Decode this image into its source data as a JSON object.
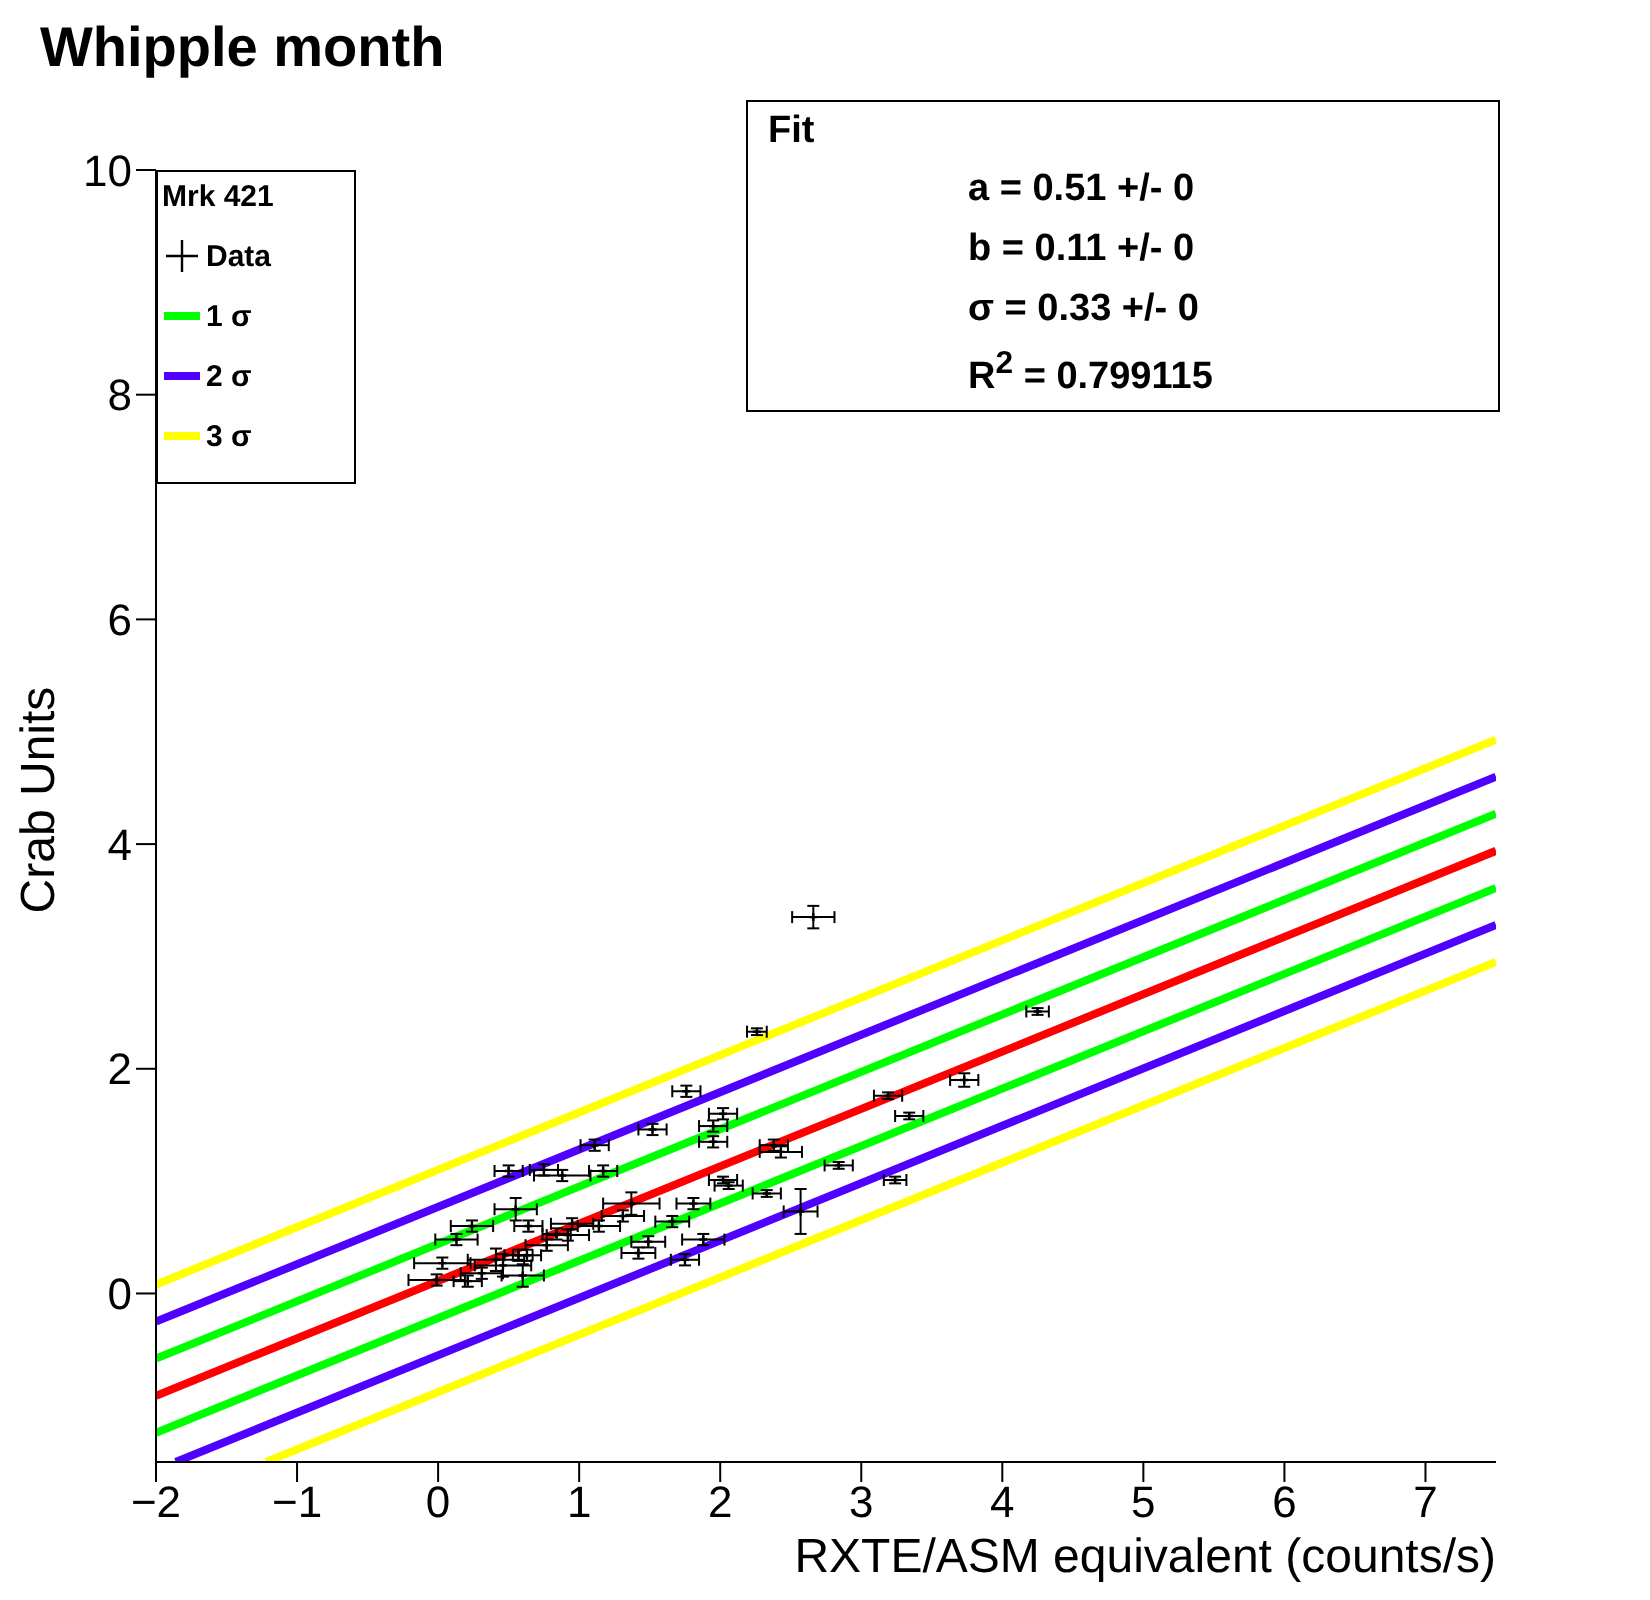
{
  "chart_data": {
    "type": "scatter",
    "title": "Whipple month",
    "xlabel": "RXTE/ASM equivalent (counts/s)",
    "ylabel": "Crab Units",
    "legend_title": "Mrk 421",
    "legend": "top left",
    "xlim": [
      -2,
      7.5
    ],
    "xticks": [
      -2,
      -1,
      0,
      1,
      2,
      3,
      4,
      5,
      6,
      7
    ],
    "ylim": [
      -1.5,
      10
    ],
    "yticks": [
      0,
      2,
      4,
      6,
      8,
      10
    ],
    "annotations": [
      "Fit",
      "a = 0.51 +/- 0",
      "b = 0.11 +/- 0",
      "σ = 0.33 +/- 0",
      "R$^{2}$ = 0.799115"
    ],
    "series": [
      {
        "name": "Data",
        "marker": "cross",
        "color": "#000000",
        "x": [
          2.66,
          2.26,
          4.25,
          3.73,
          3.19,
          3.34,
          2.84,
          3.24,
          1.76,
          1.52,
          2.02,
          1.95,
          1.95,
          2.38,
          2.43,
          2.02,
          2.06,
          2.33,
          2.57,
          1.81,
          1.66,
          1.88,
          1.49,
          1.42,
          1.75,
          1.11,
          1.17,
          0.88,
          0.5,
          0.75,
          1.14,
          1.37,
          1.31,
          0.55,
          0.63,
          0.64,
          0.84,
          0.13,
          0.24,
          -0.01,
          0.41,
          0.31,
          0.6,
          0.03,
          0.77,
          0.46,
          0.21,
          0.92,
          0.95,
          0.57
        ],
        "values": [
          3.35,
          2.33,
          2.51,
          1.9,
          1.76,
          1.58,
          1.14,
          1.01,
          1.8,
          1.46,
          1.6,
          1.49,
          1.35,
          1.32,
          1.26,
          1.01,
          0.96,
          0.89,
          0.73,
          0.8,
          0.64,
          0.48,
          0.46,
          0.36,
          0.3,
          1.32,
          1.09,
          1.05,
          1.09,
          1.1,
          0.6,
          0.8,
          0.69,
          0.75,
          0.34,
          0.6,
          0.53,
          0.48,
          0.6,
          0.12,
          0.3,
          0.18,
          0.16,
          0.27,
          0.43,
          0.25,
          0.11,
          0.52,
          0.62,
          0.34
        ],
        "errors": [
          0.1,
          0.03,
          0.03,
          0.06,
          0.03,
          0.03,
          0.03,
          0.03,
          0.05,
          0.05,
          0.05,
          0.05,
          0.05,
          0.05,
          0.05,
          0.03,
          0.03,
          0.03,
          0.2,
          0.05,
          0.05,
          0.05,
          0.05,
          0.05,
          0.05,
          0.05,
          0.05,
          0.05,
          0.05,
          0.05,
          0.05,
          0.1,
          0.05,
          0.1,
          0.05,
          0.05,
          0.05,
          0.05,
          0.05,
          0.05,
          0.1,
          0.05,
          0.1,
          0.05,
          0.05,
          0.1,
          0.05,
          0.05,
          0.05,
          0.05
        ],
        "xerrors": [
          0.15,
          0.07,
          0.08,
          0.1,
          0.1,
          0.1,
          0.1,
          0.08,
          0.1,
          0.1,
          0.1,
          0.1,
          0.1,
          0.1,
          0.15,
          0.1,
          0.1,
          0.1,
          0.12,
          0.12,
          0.12,
          0.15,
          0.12,
          0.12,
          0.1,
          0.1,
          0.1,
          0.2,
          0.1,
          0.1,
          0.15,
          0.2,
          0.15,
          0.15,
          0.1,
          0.1,
          0.1,
          0.15,
          0.15,
          0.2,
          0.2,
          0.15,
          0.15,
          0.2,
          0.15,
          0.2,
          0.1,
          0.15,
          0.15,
          0.1
        ]
      },
      {
        "type": "line",
        "color": "#ff0000",
        "x": [
          -2,
          7.5
        ],
        "values": [
          -0.91,
          3.94
        ]
      },
      {
        "name": "1 σ",
        "type": "line",
        "color": "#00ff00",
        "x": [
          -2,
          7.5
        ],
        "values": [
          -0.58,
          4.27
        ]
      },
      {
        "type": "line",
        "color": "#00ff00",
        "x": [
          -2,
          7.5
        ],
        "values": [
          -1.24,
          3.61
        ]
      },
      {
        "name": "2 σ",
        "type": "line",
        "color": "#5000ff",
        "x": [
          -2,
          7.5
        ],
        "values": [
          -0.25,
          4.6
        ]
      },
      {
        "type": "line",
        "color": "#5000ff",
        "x": [
          -1.86,
          7.5
        ],
        "values": [
          -1.5,
          3.28
        ]
      },
      {
        "name": "3 σ",
        "type": "line",
        "color": "#ffff00",
        "x": [
          -2,
          7.5
        ],
        "values": [
          0.08,
          4.93
        ]
      },
      {
        "type": "line",
        "color": "#ffff00",
        "x": [
          -1.22,
          7.5
        ],
        "values": [
          -1.5,
          2.95
        ]
      }
    ]
  }
}
